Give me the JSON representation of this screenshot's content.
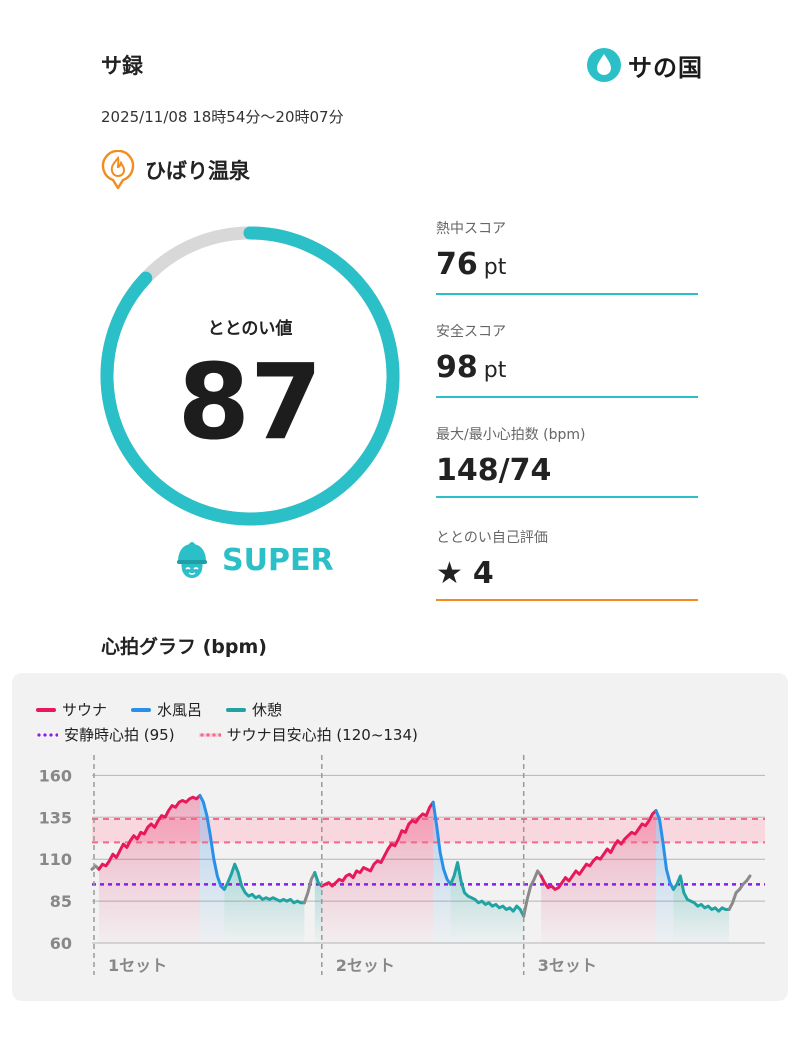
{
  "header": {
    "title": "サ録",
    "logo_text": "サの国",
    "datetime": "2025/11/08 18時54分〜20時07分"
  },
  "facility": {
    "name": "ひばり温泉"
  },
  "totonoi": {
    "label": "ととのい値",
    "value": 87,
    "max": 100,
    "rank": "SUPER"
  },
  "metrics": {
    "heat": {
      "label": "熱中スコア",
      "value": "76",
      "unit": "pt"
    },
    "safety": {
      "label": "安全スコア",
      "value": "98",
      "unit": "pt"
    },
    "heart": {
      "label": "最大/最小心拍数 (bpm)",
      "value": "148/74"
    },
    "self_eval": {
      "label": "ととのい自己評価",
      "star": "★",
      "value": "4"
    }
  },
  "colors": {
    "accent": "#2bbfc7",
    "sauna": "#e8195a",
    "cold_bath": "#2a8fe8",
    "rest": "#21a3a3",
    "other": "#8a8a8a",
    "resting_hr": "#8a1ee6",
    "target_band": "#f06a8c",
    "self_eval_line": "#f28c1e",
    "facility_icon": "#f28c1e"
  },
  "graph": {
    "title": "心拍グラフ (bpm)"
  },
  "chart_data": {
    "type": "line",
    "ylim": [
      60,
      165
    ],
    "yticks": [
      60,
      85,
      110,
      135,
      160
    ],
    "legend": {
      "sauna": "サウナ",
      "cold_bath": "水風呂",
      "rest": "休憩",
      "resting": "安静時心拍 (95)",
      "target": "サウナ目安心拍 (120~134)"
    },
    "resting_hr": 95,
    "target_range": [
      120,
      134
    ],
    "set_labels": [
      "1セット",
      "2セット",
      "3セット"
    ],
    "segments": [
      {
        "phase": "other",
        "values": [
          104,
          106,
          104
        ]
      },
      {
        "phase": "sauna",
        "values": [
          104,
          107,
          106,
          109,
          113,
          111,
          115,
          119,
          117,
          121,
          124,
          122,
          126,
          125,
          129,
          131,
          129,
          133,
          136,
          135,
          139,
          142,
          141,
          144,
          145,
          144,
          146,
          147,
          146,
          148
        ]
      },
      {
        "phase": "cold_bath",
        "values": [
          148,
          144,
          136,
          124,
          110,
          100,
          94,
          92
        ]
      },
      {
        "phase": "rest",
        "values": [
          92,
          96,
          101,
          107,
          102,
          94,
          90,
          88,
          89,
          87,
          88,
          86,
          87,
          86,
          87,
          86,
          85,
          86,
          85,
          86,
          84,
          85,
          84,
          84
        ]
      },
      {
        "phase": "other",
        "values": [
          84,
          90,
          98,
          102
        ]
      },
      {
        "phase": "rest",
        "values": [
          102,
          96,
          94
        ]
      },
      {
        "phase": "sauna",
        "values": [
          94,
          95,
          96,
          94,
          96,
          98,
          97,
          100,
          101,
          99,
          103,
          102,
          105,
          104,
          103,
          107,
          109,
          108,
          112,
          116,
          119,
          118,
          122,
          127,
          126,
          131,
          133,
          132,
          135,
          137,
          136,
          141,
          144
        ]
      },
      {
        "phase": "cold_bath",
        "values": [
          144,
          130,
          114,
          104,
          98,
          95
        ]
      },
      {
        "phase": "rest",
        "values": [
          95,
          100,
          108,
          97,
          90,
          88,
          87,
          86,
          84,
          85,
          83,
          84,
          82,
          83,
          81,
          82,
          80,
          81,
          79,
          82,
          80,
          76
        ]
      },
      {
        "phase": "other",
        "values": [
          76,
          86,
          94,
          98,
          103,
          100
        ]
      },
      {
        "phase": "sauna",
        "values": [
          100,
          96,
          93,
          94,
          92,
          93,
          96,
          99,
          97,
          100,
          103,
          101,
          104,
          107,
          106,
          109,
          111,
          110,
          113,
          116,
          114,
          118,
          121,
          119,
          122,
          124,
          126,
          125,
          128,
          131,
          130,
          133,
          137,
          139
        ]
      },
      {
        "phase": "cold_bath",
        "values": [
          139,
          134,
          120,
          104,
          96,
          92
        ]
      },
      {
        "phase": "rest",
        "values": [
          92,
          95,
          100,
          90,
          86,
          85,
          84,
          82,
          83,
          81,
          82,
          80,
          81,
          79,
          81,
          80,
          80
        ]
      },
      {
        "phase": "other",
        "values": [
          80,
          84,
          90,
          92,
          95,
          97,
          100
        ]
      }
    ]
  }
}
